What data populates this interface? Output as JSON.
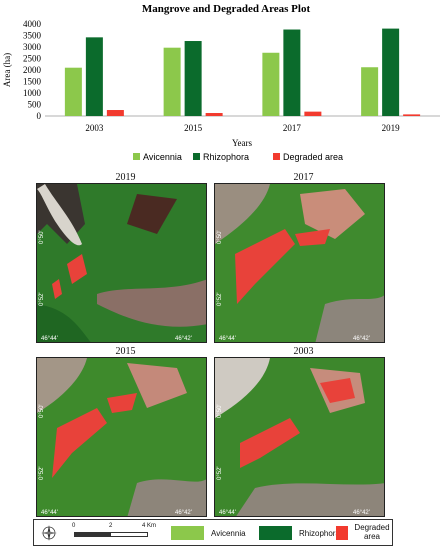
{
  "chart_data": {
    "type": "bar",
    "title": "Mangrove and Degraded Areas Plot",
    "xlabel": "Years",
    "ylabel": "Area (ha)",
    "categories": [
      "2003",
      "2015",
      "2017",
      "2019"
    ],
    "ylim": [
      0,
      4000
    ],
    "yticks": [
      "0",
      "500",
      "1000",
      "1500",
      "2000",
      "2500",
      "3000",
      "3500",
      "4000"
    ],
    "grid": false,
    "legend_position": "bottom",
    "series": [
      {
        "name": "Avicennia",
        "color": "#8cc84b",
        "values": [
          2100,
          2970,
          2750,
          2120
        ]
      },
      {
        "name": "Rhizophora",
        "color": "#0b6b2c",
        "values": [
          3420,
          3260,
          3760,
          3800
        ]
      },
      {
        "name": "Degraded area",
        "color": "#f23a2e",
        "values": [
          260,
          130,
          190,
          70
        ]
      }
    ]
  },
  "maps": [
    {
      "year": "2019",
      "coord_left": "46°44'",
      "coord_right": "46°42'",
      "lat_top": "0°50'",
      "lat_bottom": "0°52'"
    },
    {
      "year": "2017",
      "coord_left": "46°44'",
      "coord_right": "46°42'",
      "lat_top": "0°50'",
      "lat_bottom": "0°52'"
    },
    {
      "year": "2015",
      "coord_left": "46°44'",
      "coord_right": "46°42'",
      "lat_top": "0°50'",
      "lat_bottom": "0°52'"
    },
    {
      "year": "2003",
      "coord_left": "46°44'",
      "coord_right": "46°42'",
      "lat_top": "0°50'",
      "lat_bottom": "0°52'"
    }
  ],
  "map_legend": {
    "scale_labels": [
      "0",
      "2",
      "4 Km"
    ],
    "items": [
      {
        "label": "Avicennia",
        "color": "#8cc84b"
      },
      {
        "label": "Rhizophora",
        "color": "#0b6b2c"
      },
      {
        "label": "Degraded area",
        "color": "#f23a2e"
      }
    ]
  }
}
